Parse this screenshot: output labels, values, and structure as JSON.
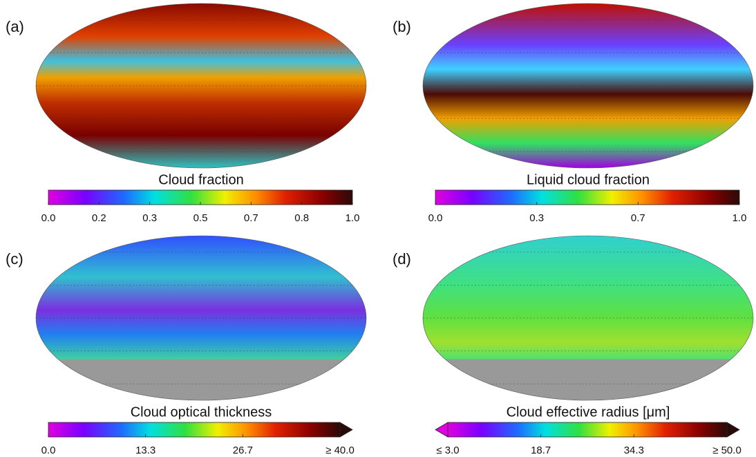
{
  "panels": [
    {
      "label": "(a)",
      "title": "Cloud fraction",
      "ticks": [
        "0.0",
        "0.2",
        "0.3",
        "0.5",
        "0.7",
        "0.8",
        "1.0"
      ]
    },
    {
      "label": "(b)",
      "title": "Liquid cloud fraction",
      "ticks": [
        "0.0",
        "0.3",
        "0.7",
        "1.0"
      ]
    },
    {
      "label": "(c)",
      "title": "Cloud optical thickness",
      "ticks": [
        "0.0",
        "13.3",
        "26.7",
        "≥ 40.0"
      ]
    },
    {
      "label": "(d)",
      "title": "Cloud effective radius [μm]",
      "ticks": [
        "≤ 3.0",
        "18.7",
        "34.3",
        "≥ 50.0"
      ]
    }
  ]
}
